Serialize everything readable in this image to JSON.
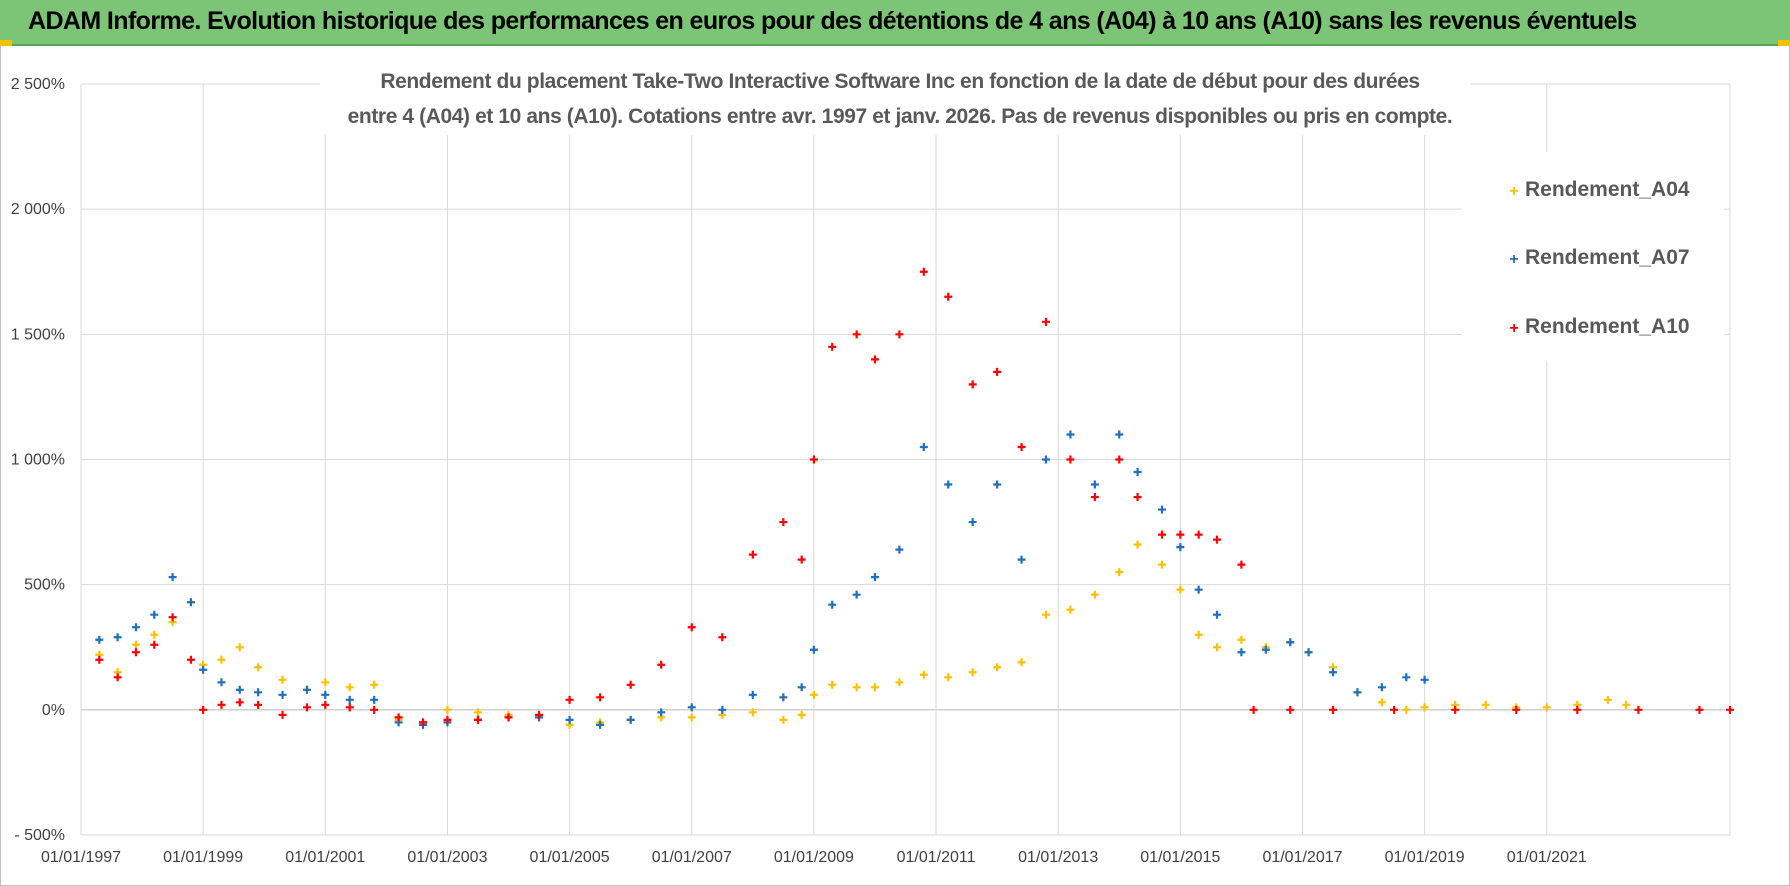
{
  "banner": {
    "title": "ADAM Informe. Evolution historique des performances en euros pour des détentions de 4 ans (A04) à 10 ans (A10) sans les revenus éventuels",
    "background_color": "#7cc576",
    "accent_color": "#f2c200"
  },
  "chart_data": {
    "type": "scatter",
    "title_lines": [
      "Rendement du placement Take-Two Interactive Software Inc en fonction de la date de début pour des durées",
      "entre 4 (A04) et 10 ans (A10). Cotations entre avr. 1997 et janv. 2026. Pas de revenus disponibles ou pris en compte."
    ],
    "xlabel": "",
    "ylabel": "",
    "xlim": [
      1997.0,
      2024.0
    ],
    "ylim": [
      -500,
      2500
    ],
    "x_ticks": [
      1997,
      1999,
      2001,
      2003,
      2005,
      2007,
      2009,
      2011,
      2013,
      2015,
      2017,
      2019,
      2021
    ],
    "x_tick_labels": [
      "01/01/1997",
      "01/01/1999",
      "01/01/2001",
      "01/01/2003",
      "01/01/2005",
      "01/01/2007",
      "01/01/2009",
      "01/01/2011",
      "01/01/2013",
      "01/01/2015",
      "01/01/2017",
      "01/01/2019",
      "01/01/2021"
    ],
    "y_ticks": [
      -500,
      0,
      500,
      1000,
      1500,
      2000,
      2500
    ],
    "y_tick_labels": [
      "- 500%",
      "0%",
      "500%",
      "1 000%",
      "1 500%",
      "2 000%",
      "2 500%"
    ],
    "grid": true,
    "legend_position": "top-right",
    "marker": "+",
    "series": [
      {
        "name": "Rendement_A04",
        "color": "#ffc000",
        "points": [
          [
            1997.3,
            220
          ],
          [
            1997.6,
            150
          ],
          [
            1997.9,
            260
          ],
          [
            1998.2,
            300
          ],
          [
            1998.5,
            350
          ],
          [
            1998.8,
            430
          ],
          [
            1999.0,
            180
          ],
          [
            1999.3,
            200
          ],
          [
            1999.6,
            250
          ],
          [
            1999.9,
            170
          ],
          [
            2000.3,
            120
          ],
          [
            2000.7,
            80
          ],
          [
            2001.0,
            110
          ],
          [
            2001.4,
            90
          ],
          [
            2001.8,
            100
          ],
          [
            2002.2,
            -40
          ],
          [
            2002.6,
            -50
          ],
          [
            2003.0,
            0
          ],
          [
            2003.5,
            -10
          ],
          [
            2004.0,
            -20
          ],
          [
            2004.5,
            -30
          ],
          [
            2005.0,
            -60
          ],
          [
            2005.5,
            -50
          ],
          [
            2006.0,
            -40
          ],
          [
            2006.5,
            -30
          ],
          [
            2007.0,
            -30
          ],
          [
            2007.5,
            -20
          ],
          [
            2008.0,
            -10
          ],
          [
            2008.5,
            -40
          ],
          [
            2008.8,
            -20
          ],
          [
            2009.0,
            60
          ],
          [
            2009.3,
            100
          ],
          [
            2009.7,
            90
          ],
          [
            2010.0,
            90
          ],
          [
            2010.4,
            110
          ],
          [
            2010.8,
            140
          ],
          [
            2011.2,
            130
          ],
          [
            2011.6,
            150
          ],
          [
            2012.0,
            170
          ],
          [
            2012.4,
            190
          ],
          [
            2012.8,
            380
          ],
          [
            2013.2,
            400
          ],
          [
            2013.6,
            460
          ],
          [
            2014.0,
            550
          ],
          [
            2014.3,
            660
          ],
          [
            2014.7,
            580
          ],
          [
            2015.0,
            480
          ],
          [
            2015.3,
            300
          ],
          [
            2015.6,
            250
          ],
          [
            2016.0,
            280
          ],
          [
            2016.4,
            250
          ],
          [
            2016.8,
            270
          ],
          [
            2017.1,
            230
          ],
          [
            2017.5,
            170
          ],
          [
            2017.9,
            70
          ],
          [
            2018.3,
            30
          ],
          [
            2018.7,
            0
          ],
          [
            2019.0,
            10
          ],
          [
            2019.5,
            20
          ],
          [
            2020.0,
            20
          ],
          [
            2020.5,
            10
          ],
          [
            2021.0,
            10
          ],
          [
            2021.5,
            20
          ],
          [
            2022.0,
            40
          ],
          [
            2022.3,
            20
          ]
        ]
      },
      {
        "name": "Rendement_A07",
        "color": "#1f6fbf",
        "points": [
          [
            1997.3,
            280
          ],
          [
            1997.6,
            290
          ],
          [
            1997.9,
            330
          ],
          [
            1998.2,
            380
          ],
          [
            1998.5,
            530
          ],
          [
            1998.8,
            430
          ],
          [
            1999.0,
            160
          ],
          [
            1999.3,
            110
          ],
          [
            1999.6,
            80
          ],
          [
            1999.9,
            70
          ],
          [
            2000.3,
            60
          ],
          [
            2000.7,
            80
          ],
          [
            2001.0,
            60
          ],
          [
            2001.4,
            40
          ],
          [
            2001.8,
            40
          ],
          [
            2002.2,
            -50
          ],
          [
            2002.6,
            -60
          ],
          [
            2003.0,
            -50
          ],
          [
            2003.5,
            -40
          ],
          [
            2004.0,
            -30
          ],
          [
            2004.5,
            -30
          ],
          [
            2005.0,
            -40
          ],
          [
            2005.5,
            -60
          ],
          [
            2006.0,
            -40
          ],
          [
            2006.5,
            -10
          ],
          [
            2007.0,
            10
          ],
          [
            2007.5,
            0
          ],
          [
            2008.0,
            60
          ],
          [
            2008.5,
            50
          ],
          [
            2008.8,
            90
          ],
          [
            2009.0,
            240
          ],
          [
            2009.3,
            420
          ],
          [
            2009.7,
            460
          ],
          [
            2010.0,
            530
          ],
          [
            2010.4,
            640
          ],
          [
            2010.8,
            1050
          ],
          [
            2011.2,
            900
          ],
          [
            2011.6,
            750
          ],
          [
            2012.0,
            900
          ],
          [
            2012.4,
            600
          ],
          [
            2012.8,
            1000
          ],
          [
            2013.2,
            1100
          ],
          [
            2013.6,
            900
          ],
          [
            2014.0,
            1100
          ],
          [
            2014.3,
            950
          ],
          [
            2014.7,
            800
          ],
          [
            2015.0,
            650
          ],
          [
            2015.3,
            480
          ],
          [
            2015.6,
            380
          ],
          [
            2016.0,
            230
          ],
          [
            2016.4,
            240
          ],
          [
            2016.8,
            270
          ],
          [
            2017.1,
            230
          ],
          [
            2017.5,
            150
          ],
          [
            2017.9,
            70
          ],
          [
            2018.3,
            90
          ],
          [
            2018.7,
            130
          ],
          [
            2019.0,
            120
          ]
        ]
      },
      {
        "name": "Rendement_A10",
        "color": "#ff0000",
        "points": [
          [
            1997.3,
            200
          ],
          [
            1997.6,
            130
          ],
          [
            1997.9,
            230
          ],
          [
            1998.2,
            260
          ],
          [
            1998.5,
            370
          ],
          [
            1998.8,
            200
          ],
          [
            1999.0,
            0
          ],
          [
            1999.3,
            20
          ],
          [
            1999.6,
            30
          ],
          [
            1999.9,
            20
          ],
          [
            2000.3,
            -20
          ],
          [
            2000.7,
            10
          ],
          [
            2001.0,
            20
          ],
          [
            2001.4,
            10
          ],
          [
            2001.8,
            0
          ],
          [
            2002.2,
            -30
          ],
          [
            2002.6,
            -50
          ],
          [
            2003.0,
            -40
          ],
          [
            2003.5,
            -40
          ],
          [
            2004.0,
            -30
          ],
          [
            2004.5,
            -20
          ],
          [
            2005.0,
            40
          ],
          [
            2005.5,
            50
          ],
          [
            2006.0,
            100
          ],
          [
            2006.5,
            180
          ],
          [
            2007.0,
            330
          ],
          [
            2007.5,
            290
          ],
          [
            2008.0,
            620
          ],
          [
            2008.5,
            750
          ],
          [
            2008.8,
            600
          ],
          [
            2009.0,
            1000
          ],
          [
            2009.3,
            1450
          ],
          [
            2009.7,
            1500
          ],
          [
            2010.0,
            1400
          ],
          [
            2010.4,
            1500
          ],
          [
            2010.8,
            1750
          ],
          [
            2011.2,
            1650
          ],
          [
            2011.6,
            1300
          ],
          [
            2012.0,
            1350
          ],
          [
            2012.4,
            1050
          ],
          [
            2012.8,
            1550
          ],
          [
            2013.2,
            1000
          ],
          [
            2013.6,
            850
          ],
          [
            2014.0,
            1000
          ],
          [
            2014.3,
            850
          ],
          [
            2014.7,
            700
          ],
          [
            2015.0,
            700
          ],
          [
            2015.3,
            700
          ],
          [
            2015.6,
            680
          ],
          [
            2016.0,
            580
          ],
          [
            2016.2,
            0
          ],
          [
            2016.8,
            0
          ],
          [
            2017.5,
            0
          ],
          [
            2018.5,
            0
          ],
          [
            2019.5,
            0
          ],
          [
            2020.5,
            0
          ],
          [
            2021.5,
            0
          ],
          [
            2022.5,
            0
          ],
          [
            2023.5,
            0
          ],
          [
            2024.0,
            0
          ]
        ]
      }
    ]
  }
}
